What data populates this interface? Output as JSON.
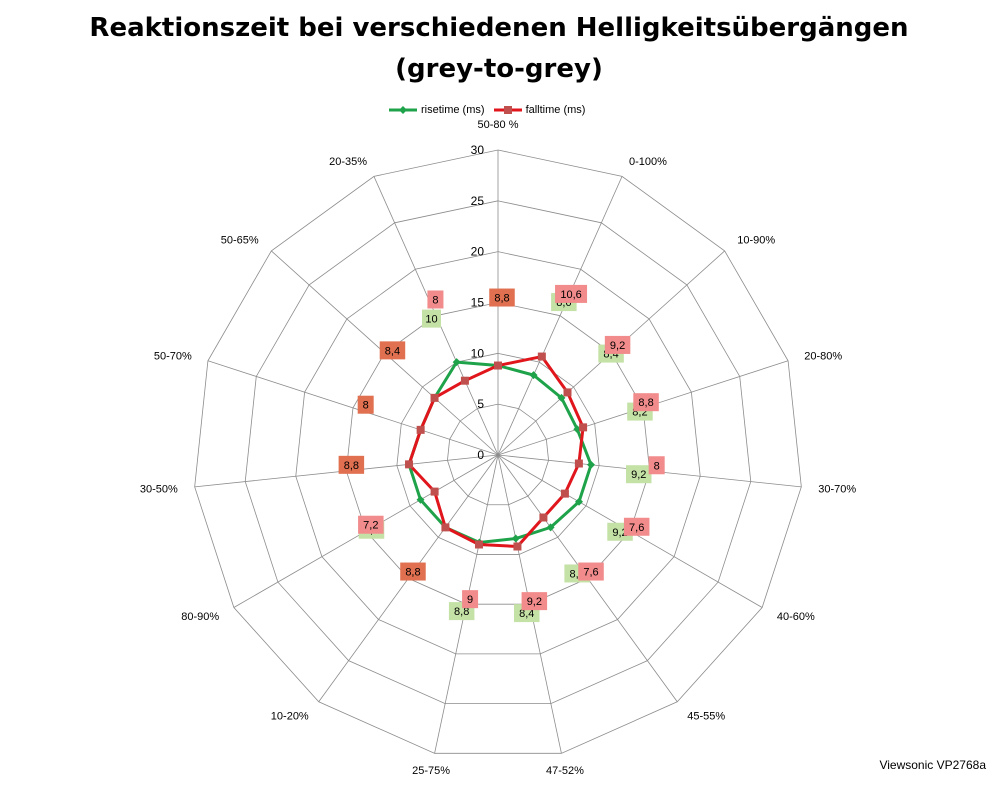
{
  "chart_data": {
    "type": "radar",
    "title": "Reaktionszeit bei verschiedenen Helligkeitsübergängen",
    "subtitle": "(grey-to-grey)",
    "categories": [
      "50-80 %",
      "0-100%",
      "10-90%",
      "20-80%",
      "30-70%",
      "40-60%",
      "45-55%",
      "47-52%",
      "25-75%",
      "10-20%",
      "80-90%",
      "30-50%",
      "50-70%",
      "50-65%",
      "20-35%"
    ],
    "rlim": [
      0,
      30
    ],
    "ticks": [
      "0",
      "5",
      "10",
      "15",
      "20",
      "25",
      "30"
    ],
    "grid": true,
    "legend_position": "top",
    "series": [
      {
        "name": "risetime (ms)",
        "color": "#1fa34a",
        "marker": "diamond",
        "values": [
          8.8,
          8.6,
          8.4,
          8.2,
          9.2,
          9.2,
          8.8,
          8.4,
          8.8,
          8.8,
          8.8,
          8.8,
          8.0,
          8.4,
          10.0
        ],
        "labels": [
          "8,8",
          "8,6",
          "8,4",
          "8,2",
          "9,2",
          "9,2",
          "8,8",
          "8,4",
          "8,8",
          "8,8",
          "8,8",
          "8,8",
          "8",
          "8,4",
          "10"
        ]
      },
      {
        "name": "falltime (ms)",
        "color": "#e0161c",
        "marker": "square",
        "values": [
          8.8,
          10.6,
          9.2,
          8.8,
          8.0,
          7.6,
          7.6,
          9.2,
          9.0,
          8.8,
          7.2,
          8.8,
          8.0,
          8.4,
          8.0
        ],
        "labels": [
          "8,8",
          "10,6",
          "9,2",
          "8,8",
          "8",
          "7,6",
          "7,6",
          "9,2",
          "9",
          "8,8",
          "7,2",
          "8,8",
          "8",
          "8,4",
          "8"
        ]
      }
    ]
  },
  "footer": {
    "text": "Viewsonic VP2768a"
  }
}
